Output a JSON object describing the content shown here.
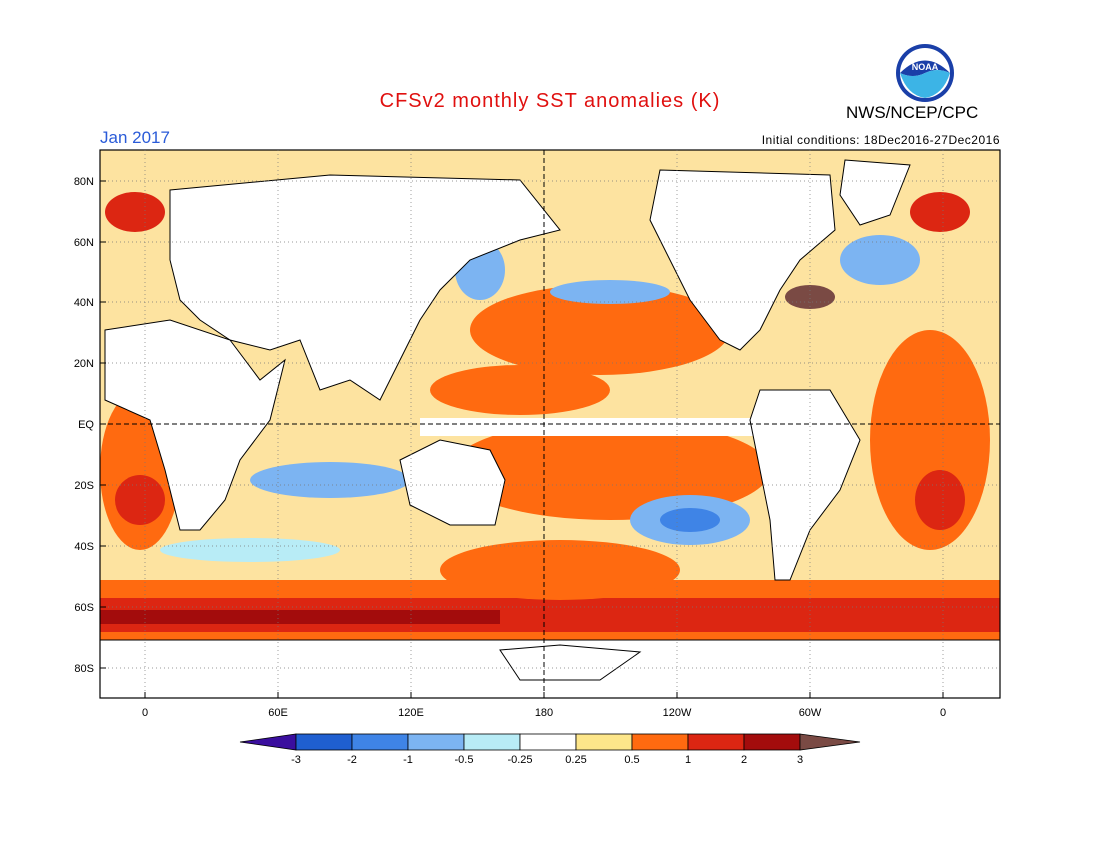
{
  "header": {
    "title": "CFSv2 monthly SST anomalies (K)",
    "month": "Jan 2017",
    "initial_conditions": "Initial conditions: 18Dec2016-27Dec2016",
    "agency": "NWS/NCEP/CPC",
    "logo_text": "NOAA"
  },
  "map": {
    "lat_labels": [
      "80N",
      "60N",
      "40N",
      "20N",
      "EQ",
      "20S",
      "40S",
      "60S",
      "80S"
    ],
    "lon_labels": [
      "0",
      "60E",
      "120E",
      "180",
      "120W",
      "60W",
      "0"
    ]
  },
  "legend": {
    "labels": [
      "-3",
      "-2",
      "-1",
      "-0.5",
      "-0.25",
      "0.25",
      "0.5",
      "1",
      "2",
      "3"
    ],
    "colors": [
      "#3a0e9e",
      "#1f5fd0",
      "#3f84e6",
      "#7cb4f2",
      "#b8ecf6",
      "#ffffff",
      "#fde68a",
      "#ff6a10",
      "#dc2612",
      "#a30c0c",
      "#7a4a44"
    ]
  }
}
